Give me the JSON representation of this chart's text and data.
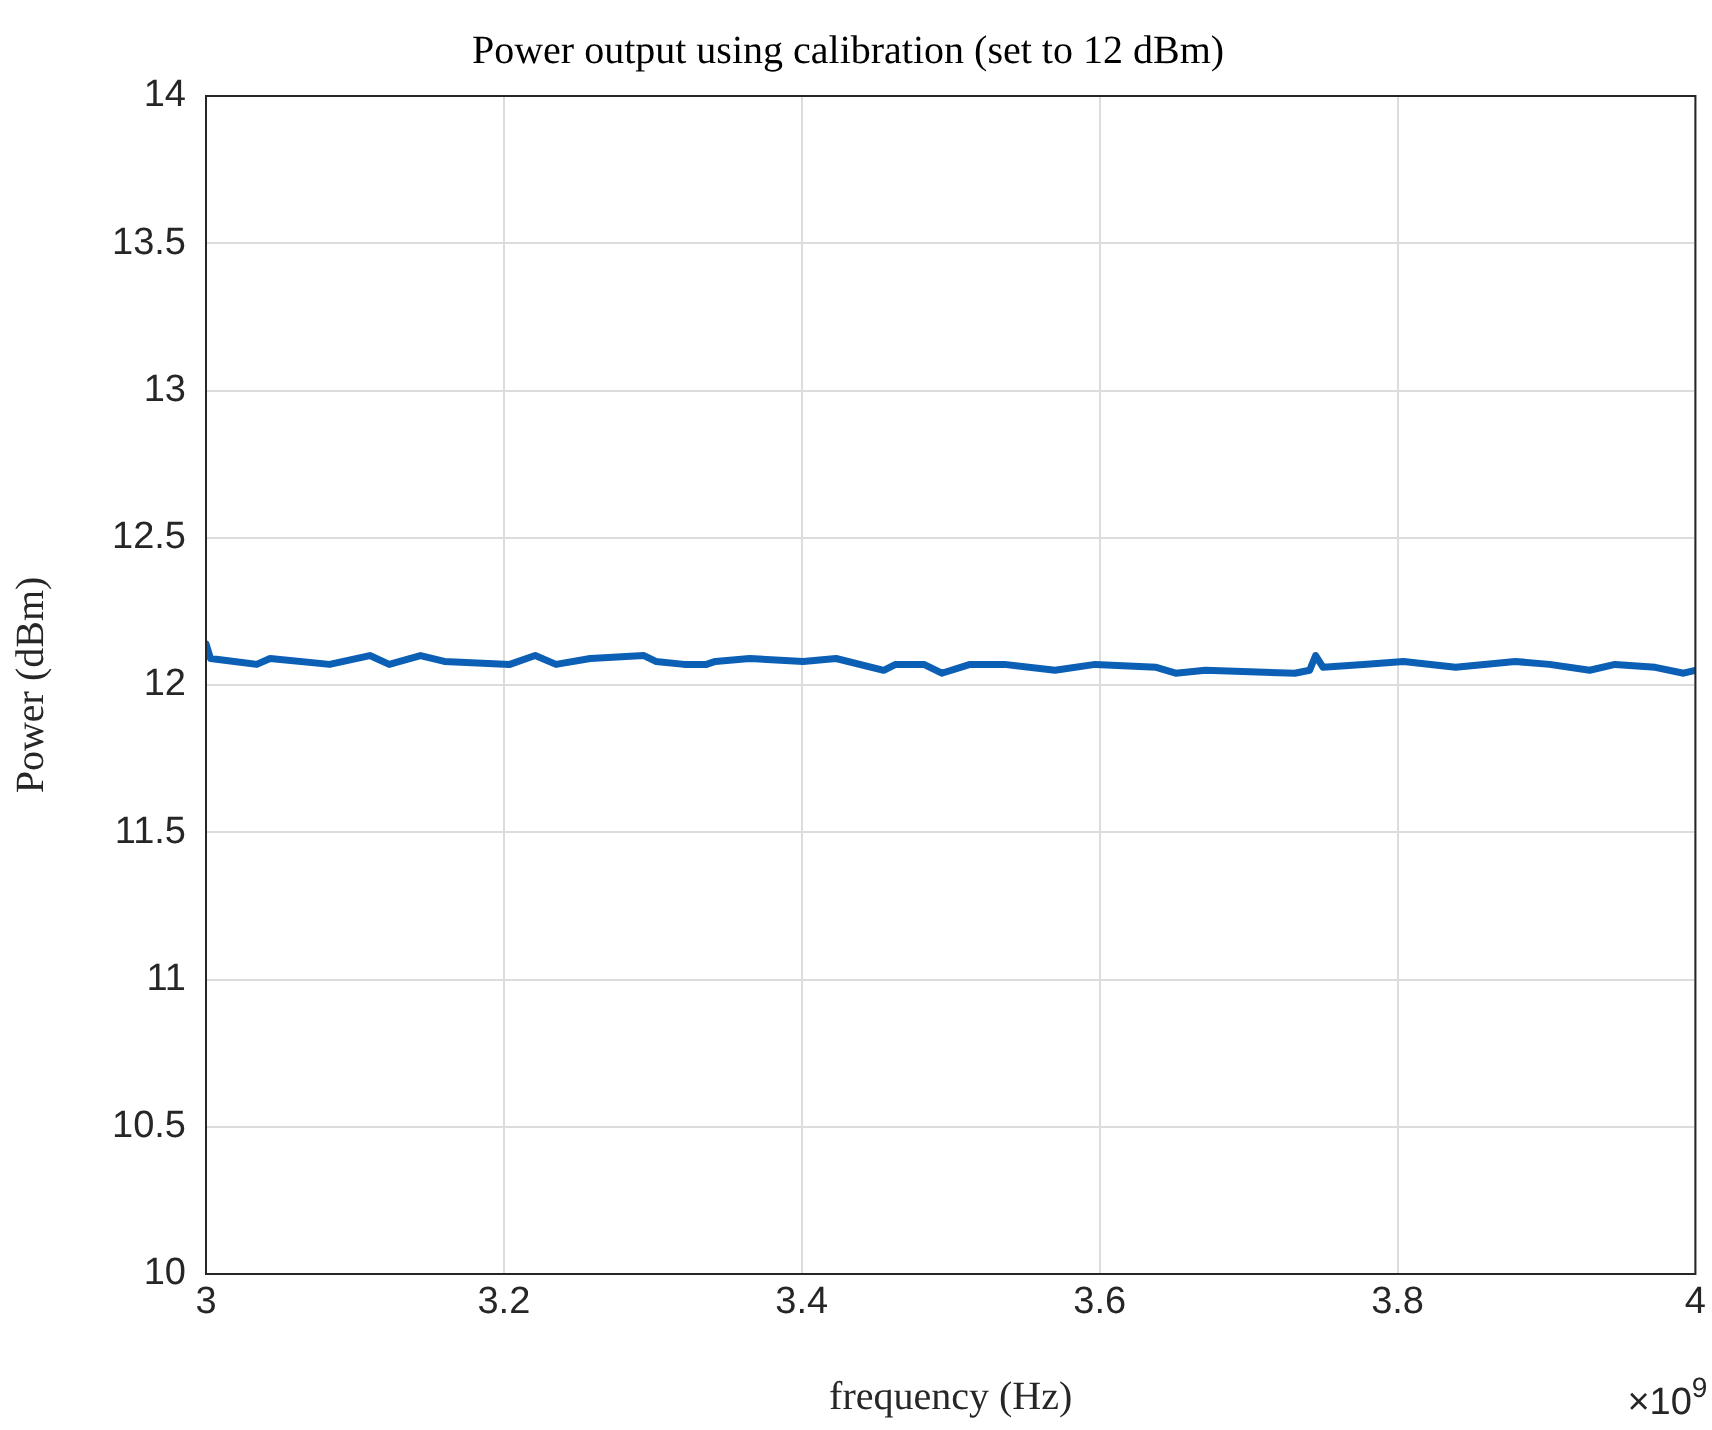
{
  "chart_data": {
    "type": "line",
    "title": "Power output using calibration (set to 12 dBm)",
    "xlabel": "frequency (Hz)",
    "ylabel": "Power (dBm)",
    "annotations": [
      "×10$^{9}$"
    ],
    "x": [
      3.0,
      3.003,
      3.034,
      3.043,
      3.083,
      3.11,
      3.123,
      3.144,
      3.16,
      3.204,
      3.221,
      3.235,
      3.258,
      3.294,
      3.302,
      3.321,
      3.336,
      3.342,
      3.365,
      3.401,
      3.423,
      3.455,
      3.463,
      3.482,
      3.494,
      3.513,
      3.536,
      3.57,
      3.597,
      3.638,
      3.651,
      3.671,
      3.731,
      3.741,
      3.745,
      3.75,
      3.777,
      3.804,
      3.839,
      3.879,
      3.902,
      3.929,
      3.946,
      3.973,
      3.992,
      4.0
    ],
    "series": [
      {
        "color": "#0b5fb5",
        "values": [
          12.14,
          12.09,
          12.07,
          12.09,
          12.07,
          12.1,
          12.07,
          12.1,
          12.08,
          12.07,
          12.1,
          12.07,
          12.09,
          12.1,
          12.08,
          12.07,
          12.07,
          12.08,
          12.09,
          12.08,
          12.09,
          12.05,
          12.07,
          12.07,
          12.04,
          12.07,
          12.07,
          12.05,
          12.07,
          12.06,
          12.04,
          12.05,
          12.04,
          12.05,
          12.1,
          12.06,
          12.07,
          12.08,
          12.06,
          12.08,
          12.07,
          12.05,
          12.07,
          12.06,
          12.04,
          12.05
        ]
      }
    ],
    "xlim": [
      3,
      4
    ],
    "xticks": [
      3,
      3.2,
      3.4,
      3.6,
      3.8,
      4
    ],
    "ylim": [
      10,
      14
    ],
    "yticks": [
      10,
      10.5,
      11,
      11.5,
      12,
      12.5,
      13,
      13.5,
      14
    ],
    "grid": true,
    "legend": false,
    "marker": "none",
    "line_style": "solid"
  }
}
